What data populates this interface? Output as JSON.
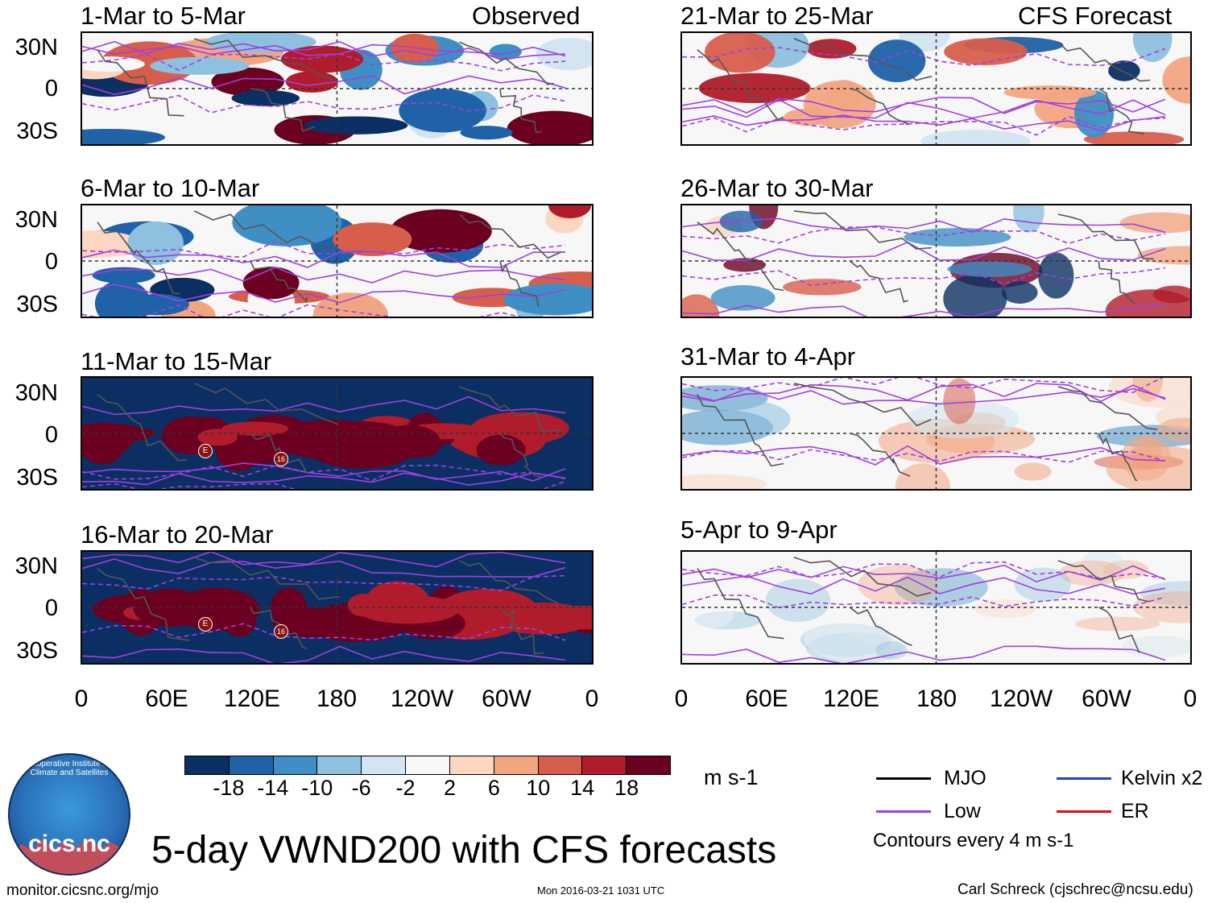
{
  "observed_label": "Observed",
  "forecast_label": "CFS Forecast",
  "observed_panels": [
    {
      "title": "1-Mar to 5-Mar"
    },
    {
      "title": "6-Mar to 10-Mar"
    },
    {
      "title": "11-Mar to 15-Mar"
    },
    {
      "title": "16-Mar to 20-Mar"
    }
  ],
  "forecast_panels": [
    {
      "title": "21-Mar to 25-Mar"
    },
    {
      "title": "26-Mar to 30-Mar"
    },
    {
      "title": "31-Mar to 4-Apr"
    },
    {
      "title": "5-Apr to 9-Apr"
    }
  ],
  "y_ticks": [
    "30N",
    "0",
    "30S"
  ],
  "x_ticks": [
    "0",
    "60E",
    "120E",
    "180",
    "120W",
    "60W",
    "0"
  ],
  "storm_markers": [
    "E",
    "16"
  ],
  "colorbar": {
    "colors": [
      "#0b2f63",
      "#1f62a8",
      "#3f8fc4",
      "#8ec0df",
      "#d2e5f0",
      "#f7f7f7",
      "#fcd6c1",
      "#f3a582",
      "#d85e4c",
      "#b01c2b",
      "#6b0020"
    ],
    "labels": [
      "-18",
      "-14",
      "-10",
      "-6",
      "-2",
      "2",
      "6",
      "10",
      "14",
      "18"
    ],
    "units": "m s-1"
  },
  "main_title": "5-day VWND200 with CFS forecasts",
  "legend": {
    "items": [
      {
        "label": "MJO",
        "color": "#000000"
      },
      {
        "label": "Kelvin x2",
        "color": "#1f3fd8"
      },
      {
        "label": "Low",
        "color": "#a040e0"
      },
      {
        "label": "ER",
        "color": "#d81010"
      }
    ],
    "note": "Contours every 4 m s-1"
  },
  "logo_text": "cics.nc",
  "logo_ring": "Cooperative Institute for Climate and Satellites",
  "footer": {
    "url": "monitor.cicsnc.org/mjo",
    "timestamp": "Mon 2016-03-21 1031 UTC",
    "credit": "Carl Schreck (cjschrec@ncsu.edu)"
  }
}
